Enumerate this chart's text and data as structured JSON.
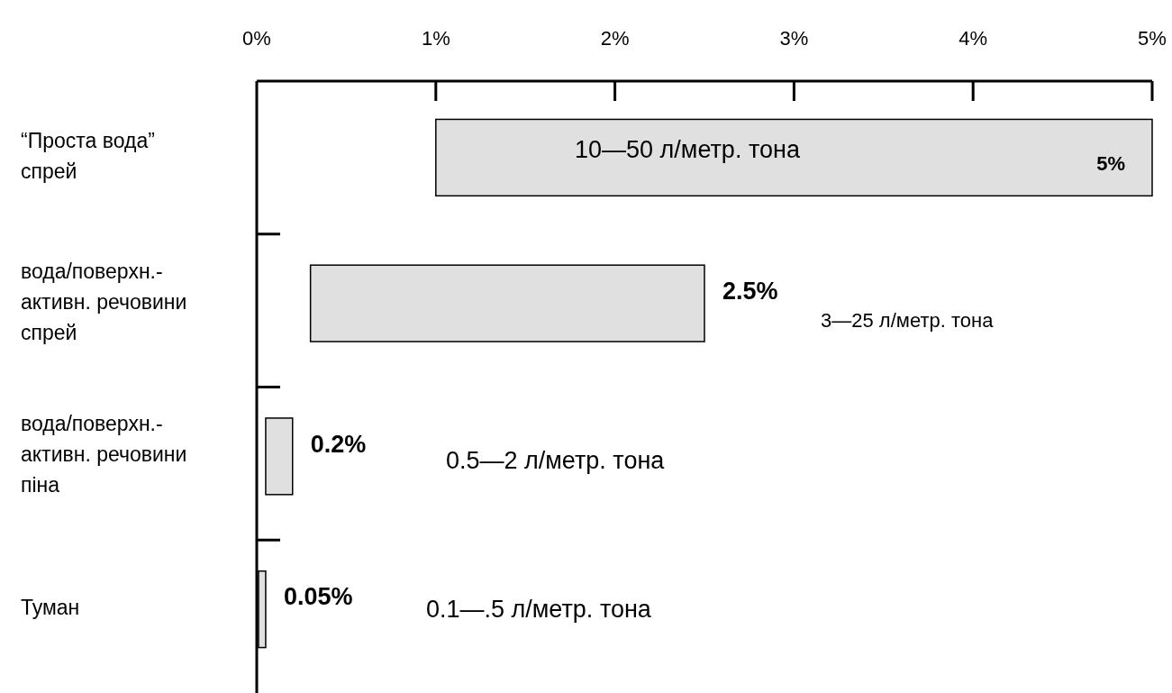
{
  "chart_data": {
    "type": "bar",
    "orientation": "horizontal",
    "categories": [
      "“Проста  вода”\nспрей",
      "вода/поверхн.-\nактивн. речовини\nспрей",
      "вода/поверхн.-\nактивн. речовини\nпіна",
      "Туман"
    ],
    "base": [
      1,
      0.3,
      0.05,
      0.01
    ],
    "values": [
      4,
      2.2,
      0.15,
      0.04
    ],
    "value_labels": [
      "5%",
      "2.5%",
      "0.2%",
      "0.05%"
    ],
    "color": "#e0e0e0",
    "xlim": [
      0,
      5
    ],
    "xticks": [
      {
        "value": 0,
        "label": "0%"
      },
      {
        "value": 1,
        "label": "1%"
      },
      {
        "value": 2,
        "label": "2%"
      },
      {
        "value": 3,
        "label": "3%"
      },
      {
        "value": 4,
        "label": "4%"
      },
      {
        "value": 5,
        "label": "5%"
      }
    ],
    "grid": false,
    "annotations": [
      "10—50 л/метр. тона",
      "3—25 л/метр. тона",
      "0.5—2 л/метр. тона",
      "0.1—.5 л/метр. тона"
    ]
  }
}
